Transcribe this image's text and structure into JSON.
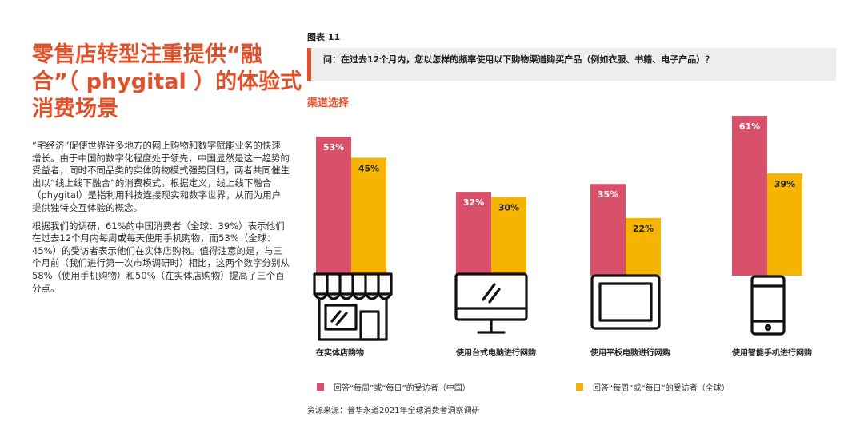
{
  "title": "零售店转型注重提供“融合”（ phygital ）的体验式消费场景",
  "paragraphs": [
    "“宅经济”促使世界许多地方的网上购物和数字赋能业务的快速增长。由于中国的数字化程度处于领先，中国显然是这一趋势的受益者，同时不同品类的实体购物模式强势回归，两者共同催生出以“线上线下融合”的消费模式。根据定义，线上线下融合（phygital）是指利用科技连接现实和数字世界，从而为用户提供独特交互体验的概念。",
    "根据我们的调研，61%的中国消费者（全球：39%）表示他们在过去12个月内每周或每天使用手机购物，而53%（全球：45%）的受访者表示他们在实体店购物。值得注意的是，与三个月前（我们进行第一次市场调研时）相比，这两个数字分别从58%（使用手机购物）和50%（在实体店购物）提高了三个百分点。"
  ],
  "figure_label": "图表 11",
  "question": "问：在过去12个月内，您以怎样的频率使用以下购物渠道购买产品（例如衣服、书籍、电子产品）？",
  "subtitle": "渠道选择",
  "chart_data": {
    "type": "bar",
    "categories": [
      "在实体店购物",
      "使用台式电脑进行网购",
      "使用平板电脑进行网购",
      "使用智能手机进行网购"
    ],
    "category_icons": [
      "storefront-icon",
      "desktop-computer-icon",
      "tablet-icon",
      "smartphone-icon"
    ],
    "series": [
      {
        "name": "回答“每周”或“每日”的受访者（中国）",
        "values": [
          53,
          32,
          35,
          61
        ],
        "color": "#d9506a"
      },
      {
        "name": "回答“每周”或“每日”的受访者（全球）",
        "values": [
          45,
          30,
          22,
          39
        ],
        "color": "#f5b400"
      }
    ],
    "unit": "%",
    "ylim": [
      0,
      61
    ],
    "grid": false,
    "legend_position": "bottom"
  },
  "source": "资源来源：普华永道2021年全球消费者洞察调研"
}
